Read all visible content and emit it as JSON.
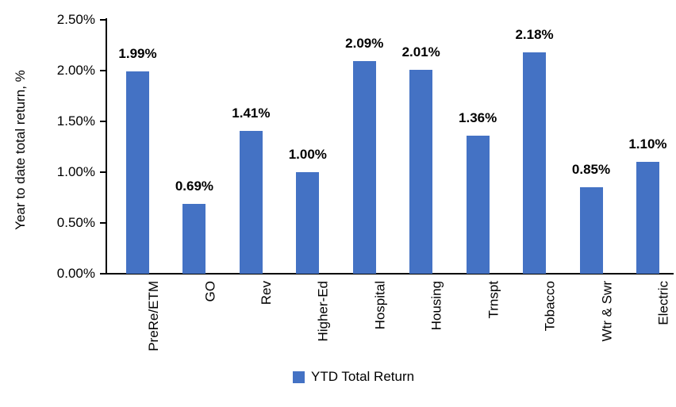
{
  "chart_data": {
    "type": "bar",
    "title": "",
    "xlabel": "",
    "ylabel": "Year to date total return, %",
    "categories": [
      "PreRe/ETM",
      "GO",
      "Rev",
      "Higher-Ed",
      "Hospital",
      "Housing",
      "Trnspt",
      "Tobacco",
      "Wtr & Swr",
      "Electric"
    ],
    "series": [
      {
        "name": "YTD Total Return",
        "values": [
          1.99,
          0.69,
          1.41,
          1.0,
          2.09,
          2.01,
          1.36,
          2.18,
          0.85,
          1.1
        ]
      }
    ],
    "value_labels": [
      "1.99%",
      "0.69%",
      "1.41%",
      "1.00%",
      "2.09%",
      "2.01%",
      "1.36%",
      "2.18%",
      "0.85%",
      "1.10%"
    ],
    "y_ticks": [
      "2.50%",
      "2.00%",
      "1.50%",
      "1.00%",
      "0.50%",
      "0.00%"
    ],
    "ylim": [
      0,
      2.5
    ],
    "grid": false,
    "legend": {
      "label": "YTD Total Return",
      "position": "bottom"
    },
    "colors": {
      "bar": "#4472C4",
      "axis": "#000000",
      "text": "#000000",
      "background": "#FFFFFF"
    }
  }
}
